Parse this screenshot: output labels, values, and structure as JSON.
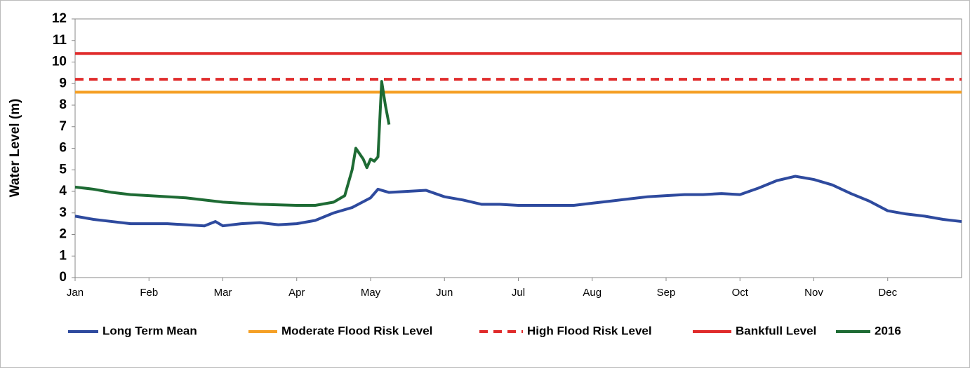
{
  "chart_data": {
    "type": "line",
    "y_label": "Water Level (m)",
    "xlim": [
      0,
      12
    ],
    "ylim": [
      0,
      12
    ],
    "yticks": [
      0,
      1,
      2,
      3,
      4,
      5,
      6,
      7,
      8,
      9,
      10,
      11,
      12
    ],
    "xticks": [
      {
        "value": 0,
        "label": "Jan"
      },
      {
        "value": 1,
        "label": "Feb"
      },
      {
        "value": 2,
        "label": "Mar"
      },
      {
        "value": 3,
        "label": "Apr"
      },
      {
        "value": 4,
        "label": "May"
      },
      {
        "value": 5,
        "label": "Jun"
      },
      {
        "value": 6,
        "label": "Jul"
      },
      {
        "value": 7,
        "label": "Aug"
      },
      {
        "value": 8,
        "label": "Sep"
      },
      {
        "value": 9,
        "label": "Oct"
      },
      {
        "value": 10,
        "label": "Nov"
      },
      {
        "value": 11,
        "label": "Dec"
      }
    ],
    "grid": false,
    "legend": "bottom",
    "series": [
      {
        "name": "Long Term Mean",
        "color": "#2e4a9e",
        "dashed": false,
        "x": [
          0,
          0.25,
          0.5,
          0.75,
          1.0,
          1.25,
          1.5,
          1.75,
          1.9,
          2.0,
          2.25,
          2.5,
          2.75,
          3.0,
          3.25,
          3.5,
          3.75,
          4.0,
          4.1,
          4.25,
          4.5,
          4.75,
          5.0,
          5.25,
          5.5,
          5.75,
          6.0,
          6.25,
          6.5,
          6.75,
          7.0,
          7.25,
          7.5,
          7.75,
          8.0,
          8.25,
          8.5,
          8.75,
          9.0,
          9.25,
          9.5,
          9.75,
          10.0,
          10.25,
          10.5,
          10.75,
          11.0,
          11.25,
          11.5,
          11.75,
          12.0
        ],
        "values": [
          2.85,
          2.7,
          2.6,
          2.5,
          2.5,
          2.5,
          2.45,
          2.4,
          2.6,
          2.4,
          2.5,
          2.55,
          2.45,
          2.5,
          2.65,
          3.0,
          3.25,
          3.7,
          4.1,
          3.95,
          4.0,
          4.05,
          3.75,
          3.6,
          3.4,
          3.4,
          3.35,
          3.35,
          3.35,
          3.35,
          3.45,
          3.55,
          3.65,
          3.75,
          3.8,
          3.85,
          3.85,
          3.9,
          3.85,
          4.15,
          4.5,
          4.7,
          4.55,
          4.3,
          3.9,
          3.55,
          3.1,
          2.95,
          2.85,
          2.7,
          2.6
        ]
      },
      {
        "name": "Moderate Flood Risk Level",
        "color": "#f5a026",
        "dashed": false,
        "x": [
          0,
          12
        ],
        "values": [
          8.6,
          8.6
        ]
      },
      {
        "name": "High Flood Risk Level",
        "color": "#e02b2b",
        "dashed": true,
        "x": [
          0,
          12
        ],
        "values": [
          9.2,
          9.2
        ]
      },
      {
        "name": "Bankfull Level",
        "color": "#e02b2b",
        "dashed": false,
        "x": [
          0,
          12
        ],
        "values": [
          10.4,
          10.4
        ]
      },
      {
        "name": "2016",
        "color": "#1e6b34",
        "dashed": false,
        "x": [
          0,
          0.25,
          0.5,
          0.75,
          1.0,
          1.5,
          2.0,
          2.5,
          3.0,
          3.25,
          3.5,
          3.65,
          3.75,
          3.8,
          3.9,
          3.95,
          4.0,
          4.05,
          4.1,
          4.15,
          4.2,
          4.25
        ],
        "values": [
          4.2,
          4.1,
          3.95,
          3.85,
          3.8,
          3.7,
          3.5,
          3.4,
          3.35,
          3.35,
          3.5,
          3.8,
          5.0,
          6.0,
          5.5,
          5.1,
          5.5,
          5.4,
          5.6,
          9.1,
          8.0,
          7.1
        ]
      }
    ]
  }
}
